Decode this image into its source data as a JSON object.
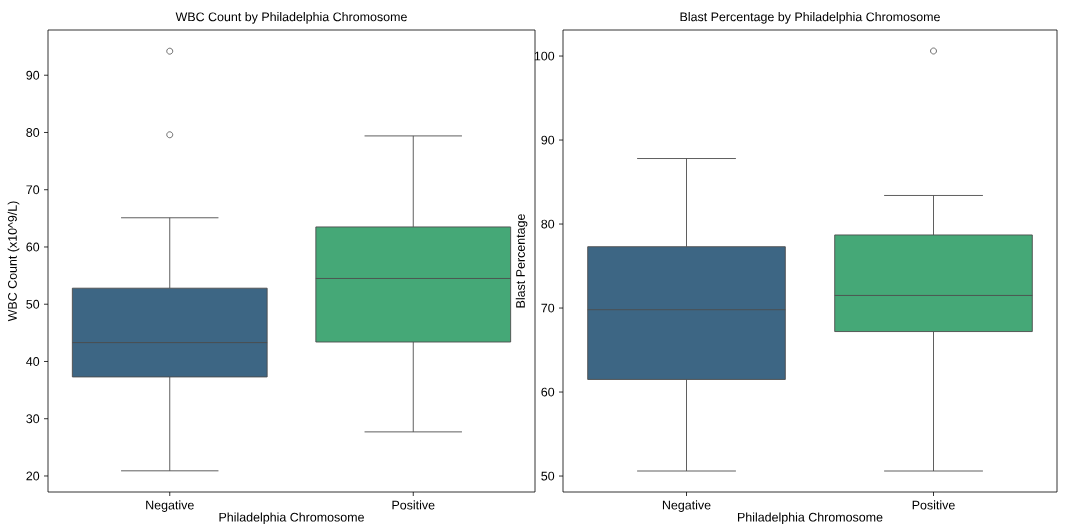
{
  "chart_data": [
    {
      "type": "box",
      "title": "WBC Count by Philadelphia Chromosome",
      "xlabel": "Philadelphia Chromosome",
      "ylabel": "WBC Count (x10^9/L)",
      "categories": [
        "Negative",
        "Positive"
      ],
      "colors": [
        "#3d6684",
        "#45a877"
      ],
      "boxes": [
        {
          "low": 20.9,
          "q1": 37.3,
          "median": 43.3,
          "q3": 52.8,
          "high": 65.1,
          "outliers": [
            94.2,
            79.6
          ]
        },
        {
          "low": 27.7,
          "q1": 43.4,
          "median": 54.5,
          "q3": 63.5,
          "high": 79.4
        }
      ],
      "ylim": [
        17.2,
        97.9
      ],
      "yticks": [
        20,
        30,
        40,
        50,
        60,
        70,
        80,
        90
      ]
    },
    {
      "type": "box",
      "title": "Blast Percentage by Philadelphia Chromosome",
      "xlabel": "Philadelphia Chromosome",
      "ylabel": "Blast Percentage",
      "categories": [
        "Negative",
        "Positive"
      ],
      "colors": [
        "#3d6684",
        "#45a877"
      ],
      "boxes": [
        {
          "low": 50.6,
          "q1": 61.5,
          "median": 69.8,
          "q3": 77.3,
          "high": 87.8
        },
        {
          "low": 50.6,
          "q1": 67.2,
          "median": 71.5,
          "q3": 78.7,
          "high": 83.4,
          "outliers": [
            100.6
          ]
        }
      ],
      "ylim": [
        48.1,
        103.1
      ],
      "yticks": [
        50,
        60,
        70,
        80,
        90,
        100
      ]
    }
  ]
}
